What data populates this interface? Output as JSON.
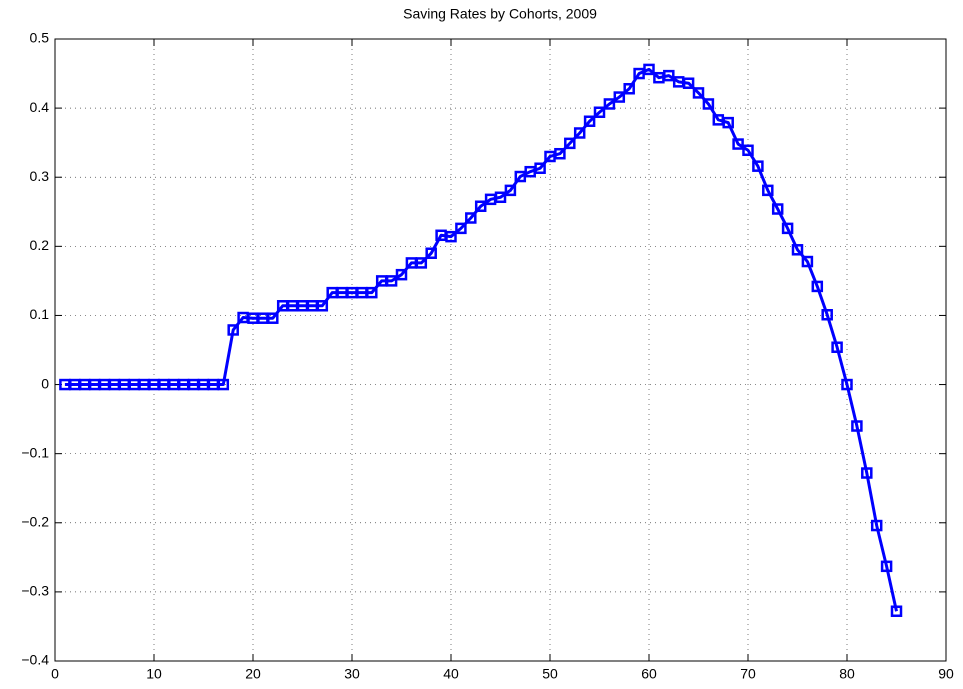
{
  "chart_data": {
    "type": "line",
    "title": "Saving Rates by Cohorts, 2009",
    "x": [
      1,
      2,
      3,
      4,
      5,
      6,
      7,
      8,
      9,
      10,
      11,
      12,
      13,
      14,
      15,
      16,
      17,
      18,
      19,
      20,
      21,
      22,
      23,
      24,
      25,
      26,
      27,
      28,
      29,
      30,
      31,
      32,
      33,
      34,
      35,
      36,
      37,
      38,
      39,
      40,
      41,
      42,
      43,
      44,
      45,
      46,
      47,
      48,
      49,
      50,
      51,
      52,
      53,
      54,
      55,
      56,
      57,
      58,
      59,
      60,
      61,
      62,
      63,
      64,
      65,
      66,
      67,
      68,
      69,
      70,
      71,
      72,
      73,
      74,
      75,
      76,
      77,
      78,
      79,
      80,
      81,
      82,
      83,
      84,
      85
    ],
    "series": [
      {
        "color": "#0000ff",
        "values": [
          0,
          0,
          0,
          0,
          0,
          0,
          0,
          0,
          0,
          0,
          0,
          0,
          0,
          0,
          0,
          0,
          0,
          0.079,
          0.097,
          0.096,
          0.096,
          0.096,
          0.114,
          0.114,
          0.114,
          0.114,
          0.114,
          0.133,
          0.133,
          0.133,
          0.133,
          0.133,
          0.15,
          0.15,
          0.159,
          0.176,
          0.176,
          0.19,
          0.216,
          0.214,
          0.226,
          0.241,
          0.258,
          0.268,
          0.271,
          0.281,
          0.301,
          0.308,
          0.313,
          0.33,
          0.334,
          0.349,
          0.364,
          0.381,
          0.394,
          0.406,
          0.416,
          0.428,
          0.45,
          0.456,
          0.444,
          0.447,
          0.438,
          0.436,
          0.422,
          0.406,
          0.383,
          0.379,
          0.348,
          0.339,
          0.316,
          0.281,
          0.254,
          0.226,
          0.195,
          0.178,
          0.142,
          0.101,
          0.054,
          0,
          -0.06,
          -0.128,
          -0.204,
          -0.263,
          -0.328
        ]
      }
    ],
    "xlim": [
      0,
      90
    ],
    "xticks": [
      0,
      10,
      20,
      30,
      40,
      50,
      60,
      70,
      80,
      90
    ],
    "ylim": [
      -0.4,
      0.5
    ],
    "yticks": [
      {
        "value": -0.4,
        "label": "−0.4"
      },
      {
        "value": -0.3,
        "label": "−0.3"
      },
      {
        "value": -0.2,
        "label": "−0.2"
      },
      {
        "value": -0.1,
        "label": "−0.1"
      },
      0,
      0.1,
      0.2,
      0.3,
      0.4,
      0.5
    ],
    "grid": true
  }
}
